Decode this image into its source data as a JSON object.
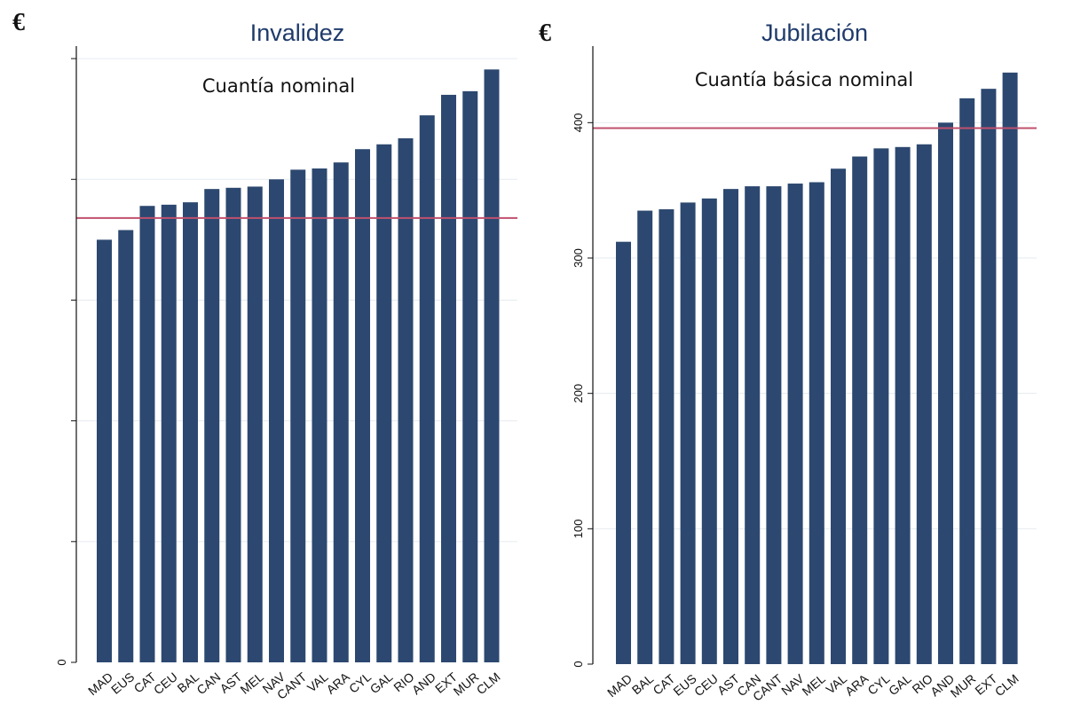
{
  "colors": {
    "bar": "#2c4870",
    "reference_line": "#c0506e",
    "grid": "#e6ebf0",
    "axis": "#111111"
  },
  "chart_data": [
    {
      "type": "bar",
      "title": "Invalidez",
      "subtitle": "Cuantía nominal",
      "unit_label": "€",
      "categories": [
        "MAD",
        "EUS",
        "CAT",
        "CEU",
        "BAL",
        "CAN",
        "AST",
        "MEL",
        "NAV",
        "CANT",
        "VAL",
        "ARA",
        "CYL",
        "GAL",
        "RIO",
        "AND",
        "EXT",
        "MUR",
        "CLM"
      ],
      "values": [
        350,
        358,
        378,
        379,
        381,
        392,
        393,
        394,
        400,
        408,
        409,
        414,
        425,
        429,
        434,
        453,
        470,
        473,
        491
      ],
      "reference_line": 368,
      "ylim": [
        0,
        503
      ],
      "yticks": [
        {
          "value": 0,
          "label": "0"
        }
      ],
      "grid_values": [
        100,
        200,
        300,
        400,
        500
      ],
      "grid": true,
      "legend": "none"
    },
    {
      "type": "bar",
      "title": "Jubilación",
      "subtitle": "Cuantía básica nominal",
      "unit_label": "€",
      "categories": [
        "MAD",
        "BAL",
        "CAT",
        "EUS",
        "CEU",
        "AST",
        "CAN",
        "CANT",
        "NAV",
        "MEL",
        "VAL",
        "ARA",
        "CYL",
        "GAL",
        "RIO",
        "AND",
        "MUR",
        "EXT",
        "CLM"
      ],
      "values": [
        312,
        335,
        336,
        341,
        344,
        351,
        353,
        353,
        355,
        356,
        366,
        375,
        381,
        382,
        384,
        400,
        418,
        425,
        437
      ],
      "reference_line": 396,
      "ylim": [
        0,
        450
      ],
      "yticks": [
        {
          "value": 0,
          "label": "0"
        },
        {
          "value": 100,
          "label": "100"
        },
        {
          "value": 200,
          "label": "200"
        },
        {
          "value": 300,
          "label": "300"
        },
        {
          "value": 400,
          "label": "400"
        }
      ],
      "grid_values": [
        100,
        200,
        300,
        400
      ],
      "grid": true,
      "legend": "none"
    }
  ]
}
